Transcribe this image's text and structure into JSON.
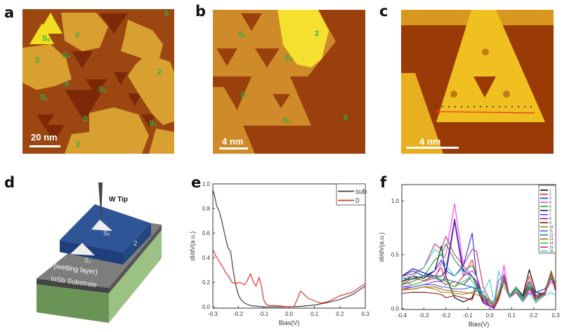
{
  "panels": {
    "a": {
      "label": "a",
      "scale_bar": "20 nm",
      "regions": [
        "S₂",
        "2",
        "2",
        "0",
        "S₁",
        "2",
        "0",
        "S₁",
        "S₁",
        "0",
        "S₁",
        "2"
      ]
    },
    "b": {
      "label": "b",
      "scale_bar": "4 nm",
      "regions": [
        "S₁",
        "2",
        "S₁",
        "0",
        "S₁",
        "0"
      ]
    },
    "c": {
      "label": "c",
      "scale_bar": "4 nm"
    },
    "d": {
      "label": "d",
      "tip": "W Tip",
      "top_layer": "2",
      "wetting_layer": "0 (wetting layer)",
      "substrate": "InSb Substrate",
      "triangle_top": "S₂",
      "triangle_bottom": "S₁",
      "colors": {
        "top_layer": "#2f5597",
        "wetting_layer": "#808080",
        "substrate": "#6e9a5a"
      }
    },
    "e": {
      "label": "e"
    },
    "f": {
      "label": "f"
    }
  },
  "chart_data": [
    {
      "type": "line",
      "panel": "e",
      "xlabel": "Bias(V)",
      "ylabel": "dI/dV(a.u.)",
      "xlim": [
        -0.3,
        0.3
      ],
      "ylim": [
        -0.01,
        1.0
      ],
      "xticks": [
        "-0.3",
        "-0.2",
        "-0.1",
        "0.0",
        "0.1",
        "0.2",
        "0.3"
      ],
      "yticks": [
        "0.0",
        "0.2",
        "0.4",
        "0.6",
        "0.8",
        "1.0"
      ],
      "legend": "top-right",
      "series": [
        {
          "name": "sub",
          "color": "#404040",
          "x": [
            -0.3,
            -0.295,
            -0.285,
            -0.275,
            -0.265,
            -0.25,
            -0.24,
            -0.23,
            -0.22,
            -0.21,
            -0.2,
            -0.19,
            -0.175,
            -0.15,
            -0.125,
            -0.1,
            -0.05,
            0.0,
            0.05,
            0.1,
            0.125,
            0.15,
            0.2,
            0.25,
            0.3
          ],
          "y": [
            0.95,
            0.92,
            0.82,
            0.78,
            0.7,
            0.56,
            0.48,
            0.45,
            0.3,
            0.18,
            0.1,
            0.06,
            0.03,
            0.01,
            0.005,
            0.0,
            0.0,
            0.0,
            0.005,
            0.015,
            0.025,
            0.035,
            0.06,
            0.1,
            0.17
          ]
        },
        {
          "name": "0",
          "color": "#e8302a",
          "x": [
            -0.3,
            -0.29,
            -0.275,
            -0.26,
            -0.25,
            -0.235,
            -0.225,
            -0.21,
            -0.195,
            -0.185,
            -0.175,
            -0.165,
            -0.152,
            -0.14,
            -0.13,
            -0.118,
            -0.11,
            -0.1,
            -0.09,
            -0.075,
            -0.05,
            0.0,
            0.02,
            0.03,
            0.045,
            0.06,
            0.075,
            0.1,
            0.125,
            0.15,
            0.2,
            0.25,
            0.3
          ],
          "y": [
            0.47,
            0.42,
            0.37,
            0.32,
            0.28,
            0.24,
            0.2,
            0.19,
            0.2,
            0.19,
            0.18,
            0.21,
            0.27,
            0.2,
            0.17,
            0.24,
            0.18,
            0.06,
            0.02,
            0.01,
            0.01,
            0.0,
            0.005,
            0.05,
            0.13,
            0.1,
            0.07,
            0.05,
            0.03,
            0.04,
            0.09,
            0.12,
            0.19
          ]
        }
      ]
    },
    {
      "type": "line",
      "panel": "f",
      "xlabel": "Bias(V)",
      "ylabel": "dI/dV(a.u.)",
      "xlim": [
        -0.4,
        0.3
      ],
      "ylim": [
        -0.01,
        1.15
      ],
      "xticks": [
        "-0.4",
        "-0.3",
        "-0.2",
        "-0.1",
        "0.0",
        "0.1",
        "0.2",
        "0.3"
      ],
      "yticks": [
        "0.0",
        "0.5",
        "1.0"
      ],
      "legend": "top-right",
      "x": [
        -0.4,
        -0.35,
        -0.3,
        -0.25,
        -0.22,
        -0.2,
        -0.16,
        -0.12,
        -0.08,
        -0.06,
        -0.03,
        0.0,
        0.02,
        0.04,
        0.065,
        0.09,
        0.12,
        0.15,
        0.18,
        0.21,
        0.25,
        0.28,
        0.3
      ],
      "series": [
        {
          "name": "1",
          "color": "#000000",
          "values": [
            0.25,
            0.3,
            0.28,
            0.35,
            0.58,
            0.3,
            0.1,
            0.06,
            0.1,
            0.2,
            0.05,
            0.02,
            0.0,
            0.1,
            0.25,
            0.1,
            0.2,
            0.12,
            0.36,
            0.15,
            0.13,
            0.3,
            0.18
          ]
        },
        {
          "name": "2",
          "color": "#ff2020",
          "values": [
            0.22,
            0.28,
            0.26,
            0.3,
            0.38,
            0.25,
            0.2,
            0.3,
            0.45,
            0.3,
            0.05,
            0.02,
            0.0,
            0.08,
            0.25,
            0.1,
            0.18,
            0.1,
            0.3,
            0.12,
            0.15,
            0.3,
            0.16
          ]
        },
        {
          "name": "3",
          "color": "#1f2fe0",
          "values": [
            0.3,
            0.35,
            0.3,
            0.35,
            0.45,
            0.35,
            0.3,
            0.4,
            0.7,
            0.3,
            0.06,
            0.02,
            0.0,
            0.1,
            0.26,
            0.1,
            0.2,
            0.1,
            0.2,
            0.15,
            0.18,
            0.28,
            0.18
          ]
        },
        {
          "name": "4",
          "color": "#ff33ff",
          "values": [
            0.2,
            0.22,
            0.25,
            0.28,
            0.42,
            0.5,
            0.97,
            0.4,
            0.3,
            0.25,
            0.08,
            0.02,
            0.0,
            0.12,
            0.4,
            0.1,
            0.15,
            0.08,
            0.15,
            0.1,
            0.15,
            0.25,
            0.2
          ]
        },
        {
          "name": "5",
          "color": "#1f9a2a",
          "values": [
            0.22,
            0.25,
            0.3,
            0.45,
            0.5,
            0.6,
            0.45,
            0.35,
            0.4,
            0.3,
            0.1,
            0.03,
            0.01,
            0.1,
            0.3,
            0.12,
            0.18,
            0.08,
            0.2,
            0.08,
            0.15,
            0.3,
            0.22
          ]
        },
        {
          "name": "6",
          "color": "#0f1f7a",
          "values": [
            0.3,
            0.37,
            0.33,
            0.3,
            0.3,
            0.35,
            0.83,
            0.35,
            0.3,
            0.22,
            0.08,
            0.03,
            0.0,
            0.12,
            0.3,
            0.1,
            0.2,
            0.1,
            0.25,
            0.12,
            0.15,
            0.3,
            0.2
          ]
        },
        {
          "name": "7",
          "color": "#8a2be2",
          "values": [
            0.18,
            0.2,
            0.22,
            0.25,
            0.25,
            0.3,
            0.8,
            0.3,
            0.35,
            0.3,
            0.1,
            0.03,
            0.0,
            0.1,
            0.32,
            0.12,
            0.2,
            0.1,
            0.2,
            0.1,
            0.12,
            0.3,
            0.2
          ]
        },
        {
          "name": "8",
          "color": "#8b1a8b",
          "values": [
            0.25,
            0.28,
            0.3,
            0.3,
            0.25,
            0.22,
            0.25,
            0.22,
            0.3,
            0.25,
            0.08,
            0.03,
            0.01,
            0.12,
            0.3,
            0.1,
            0.18,
            0.1,
            0.22,
            0.1,
            0.15,
            0.33,
            0.2
          ]
        },
        {
          "name": "9",
          "color": "#8b1010",
          "values": [
            0.14,
            0.15,
            0.15,
            0.14,
            0.13,
            0.1,
            0.12,
            0.1,
            0.08,
            0.2,
            0.15,
            0.05,
            0.02,
            0.1,
            0.28,
            0.1,
            0.15,
            0.08,
            0.2,
            0.1,
            0.15,
            0.35,
            0.16
          ]
        },
        {
          "name": "10",
          "color": "#9a8a10",
          "values": [
            0.18,
            0.18,
            0.2,
            0.18,
            0.15,
            0.15,
            0.14,
            0.13,
            0.15,
            0.18,
            0.1,
            0.05,
            0.02,
            0.12,
            0.27,
            0.1,
            0.17,
            0.08,
            0.18,
            0.08,
            0.15,
            0.35,
            0.22
          ]
        },
        {
          "name": "11",
          "color": "#3a6fc0",
          "values": [
            0.2,
            0.2,
            0.22,
            0.22,
            0.2,
            0.2,
            0.18,
            0.18,
            0.2,
            0.16,
            0.12,
            0.05,
            0.02,
            0.12,
            0.28,
            0.12,
            0.2,
            0.1,
            0.2,
            0.08,
            0.15,
            0.3,
            0.2
          ]
        },
        {
          "name": "12",
          "color": "#108a8a",
          "values": [
            0.28,
            0.27,
            0.3,
            0.28,
            0.26,
            0.27,
            0.25,
            0.22,
            0.2,
            0.18,
            0.12,
            0.08,
            0.05,
            0.15,
            0.3,
            0.12,
            0.2,
            0.08,
            0.2,
            0.06,
            0.14,
            0.28,
            0.22
          ]
        },
        {
          "name": "13",
          "color": "#b8650f",
          "values": [
            0.17,
            0.18,
            0.2,
            0.2,
            0.18,
            0.17,
            0.16,
            0.15,
            0.14,
            0.13,
            0.1,
            0.05,
            0.02,
            0.12,
            0.25,
            0.1,
            0.17,
            0.08,
            0.18,
            0.08,
            0.13,
            0.3,
            0.2
          ]
        },
        {
          "name": "14",
          "color": "#33cc33",
          "values": [
            0.25,
            0.22,
            0.25,
            0.3,
            0.27,
            0.25,
            0.2,
            0.25,
            0.3,
            0.2,
            0.15,
            0.06,
            0.03,
            0.15,
            0.3,
            0.12,
            0.2,
            0.08,
            0.22,
            0.05,
            0.15,
            0.3,
            0.24
          ]
        },
        {
          "name": "15",
          "color": "#c0307a",
          "values": [
            0.3,
            0.32,
            0.38,
            0.6,
            0.55,
            0.67,
            0.5,
            0.4,
            0.55,
            0.53,
            0.2,
            0.08,
            0.03,
            0.26,
            0.3,
            0.1,
            0.15,
            0.06,
            0.18,
            0.08,
            0.15,
            0.32,
            0.22
          ]
        },
        {
          "name": "16",
          "color": "#40c8d8",
          "values": [
            0.28,
            0.3,
            0.38,
            0.55,
            0.5,
            0.4,
            0.3,
            0.38,
            0.25,
            0.18,
            0.15,
            0.27,
            0.05,
            0.35,
            0.2,
            0.1,
            0.18,
            0.06,
            0.14,
            0.06,
            0.12,
            0.15,
            0.12
          ]
        }
      ]
    }
  ]
}
